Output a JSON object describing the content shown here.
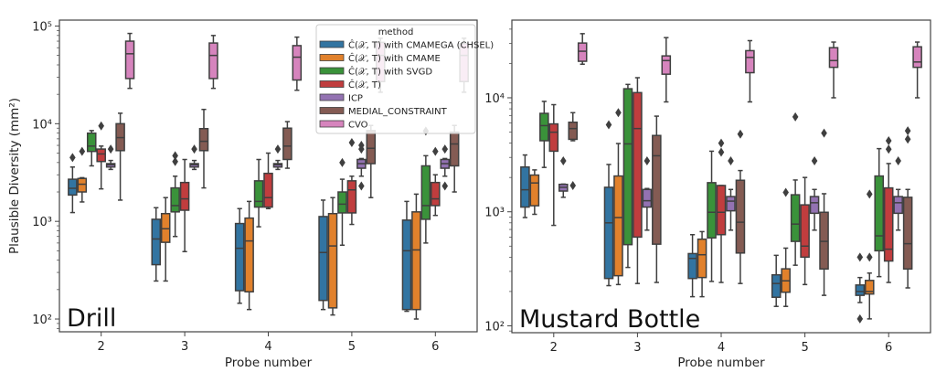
{
  "chart_data": [
    {
      "type": "box",
      "panel_label": "Drill",
      "xlabel": "Probe number",
      "ylabel": "Plausible Diversity (mm²)",
      "yscale": "log",
      "ylim": [
        74,
        115000
      ],
      "yticks": [
        {
          "value": 100,
          "label": "10²"
        },
        {
          "value": 1000,
          "label": "10³"
        },
        {
          "value": 10000,
          "label": "10⁴"
        },
        {
          "value": 100000,
          "label": "10⁵"
        }
      ],
      "categories": [
        "2",
        "3",
        "4",
        "5",
        "6"
      ],
      "legend": {
        "title": "method",
        "placement": "top-right"
      },
      "box_format": [
        "whisker_low",
        "q1",
        "median",
        "q3",
        "whisker_high",
        "outliers"
      ],
      "series": [
        {
          "name": "Ĉ(𝒳, T) with CMAMEGA (CHSEL)",
          "color": "#3274a1",
          "boxes": [
            [
              1230,
              1860,
              2180,
              2700,
              3600,
              [
                4500
              ]
            ],
            [
              245,
              360,
              660,
              1050,
              1380,
              []
            ],
            [
              145,
              195,
              530,
              950,
              1350,
              []
            ],
            [
              125,
              155,
              480,
              1120,
              1650,
              []
            ],
            [
              120,
              125,
              500,
              1030,
              1600,
              []
            ]
          ]
        },
        {
          "name": "Ĉ(𝒳, T) with CMAME",
          "color": "#e1812c",
          "boxes": [
            [
              1580,
              2000,
              2400,
              2750,
              2800,
              [
                5200
              ]
            ],
            [
              245,
              610,
              840,
              1200,
              1750,
              []
            ],
            [
              125,
              190,
              630,
              1080,
              1600,
              []
            ],
            [
              110,
              130,
              560,
              1200,
              1750,
              []
            ],
            [
              100,
              125,
              510,
              1250,
              1900,
              []
            ]
          ]
        },
        {
          "name": "Ĉ(𝒳, T) with SVGD",
          "color": "#3a923a",
          "boxes": [
            [
              3700,
              5200,
              5900,
              8000,
              8500,
              []
            ],
            [
              700,
              1250,
              1450,
              2200,
              2900,
              [
                4100,
                4700
              ]
            ],
            [
              880,
              1400,
              1600,
              2600,
              4300,
              []
            ],
            [
              570,
              1220,
              1500,
              2000,
              2700,
              [
                4000
              ]
            ],
            [
              600,
              1050,
              1450,
              3700,
              4700,
              [
                8400
              ]
            ]
          ]
        },
        {
          "name": "Ĉ(𝒳, T)",
          "color": "#c03d3e",
          "boxes": [
            [
              2150,
              4100,
              4900,
              5500,
              5900,
              [
                9500
              ]
            ],
            [
              490,
              1300,
              1700,
              2500,
              4300,
              []
            ],
            [
              1350,
              1400,
              1750,
              3100,
              5000,
              []
            ],
            [
              930,
              1220,
              2100,
              2600,
              2900,
              [
                6400
              ]
            ],
            [
              1150,
              1450,
              1700,
              2500,
              3000,
              [
                5200
              ]
            ]
          ]
        },
        {
          "name": "ICP",
          "color": "#9372b2",
          "boxes": [
            [
              3400,
              3600,
              3800,
              3900,
              4200,
              [
                5500
              ]
            ],
            [
              3400,
              3600,
              3800,
              3900,
              4200,
              [
                5500
              ]
            ],
            [
              3400,
              3600,
              3800,
              3900,
              4200,
              [
                5500
              ]
            ],
            [
              2900,
              3500,
              3900,
              4300,
              4400,
              [
                2300,
                5500,
                6000
              ]
            ],
            [
              2900,
              3500,
              3900,
              4300,
              4400,
              [
                2300,
                5500
              ]
            ]
          ]
        },
        {
          "name": "MEDIAL_CONSTRAINT",
          "color": "#845b53",
          "boxes": [
            [
              1650,
              5300,
              7200,
              10000,
              12800,
              []
            ],
            [
              2200,
              5300,
              6600,
              8900,
              14000,
              []
            ],
            [
              3500,
              4300,
              5900,
              9000,
              10500,
              []
            ],
            [
              1750,
              3900,
              5600,
              8500,
              9600,
              []
            ],
            [
              2000,
              3700,
              6200,
              8200,
              9600,
              []
            ]
          ]
        },
        {
          "name": "CVO",
          "color": "#d684bd",
          "boxes": [
            [
              23000,
              29000,
              52000,
              70000,
              84000,
              []
            ],
            [
              23000,
              29000,
              50000,
              67000,
              80000,
              []
            ],
            [
              22000,
              28000,
              48000,
              63000,
              77000,
              []
            ],
            [
              21000,
              27000,
              50000,
              68000,
              75000,
              []
            ],
            [
              21000,
              27000,
              50000,
              66000,
              75000,
              []
            ]
          ]
        }
      ]
    },
    {
      "type": "box",
      "panel_label": "Mustard Bottle",
      "xlabel": "Probe number",
      "ylabel": "",
      "yscale": "log",
      "ylim": [
        87,
        48000
      ],
      "yticks": [
        {
          "value": 100,
          "label": "10²"
        },
        {
          "value": 1000,
          "label": "10³"
        },
        {
          "value": 10000,
          "label": "10⁴"
        }
      ],
      "categories": [
        "2",
        "3",
        "4",
        "5",
        "6"
      ],
      "box_format": [
        "whisker_low",
        "q1",
        "median",
        "q3",
        "whisker_high",
        "outliers"
      ],
      "series": [
        {
          "name": "Ĉ(𝒳, T) with CMAMEGA (CHSEL)",
          "color": "#3274a1",
          "boxes": [
            [
              890,
              1100,
              1560,
              2470,
              3150,
              []
            ],
            [
              225,
              260,
              800,
              1640,
              2600,
              [
                5800
              ]
            ],
            [
              180,
              260,
              390,
              430,
              630,
              []
            ],
            [
              148,
              178,
              235,
              280,
              415,
              []
            ],
            [
              160,
              185,
              200,
              228,
              265,
              [
                115,
                400
              ]
            ]
          ]
        },
        {
          "name": "Ĉ(𝒳, T) with CMAME",
          "color": "#e1812c",
          "boxes": [
            [
              950,
              1130,
              1790,
              2100,
              2330,
              []
            ],
            [
              230,
              275,
              890,
              2060,
              3970,
              [
                7400
              ]
            ],
            [
              180,
              265,
              420,
              575,
              670,
              []
            ],
            [
              148,
              197,
              248,
              316,
              480,
              [
                1480
              ]
            ],
            [
              115,
              190,
              200,
              250,
              290,
              [
                400,
                1430
              ]
            ]
          ]
        },
        {
          "name": "Ĉ(𝒳, T) with SVGD",
          "color": "#3a923a",
          "boxes": [
            [
              2450,
              4200,
              5700,
              7300,
              9300,
              []
            ],
            [
              325,
              515,
              3940,
              12000,
              13100,
              []
            ],
            [
              245,
              590,
              990,
              1800,
              3400,
              []
            ],
            [
              340,
              550,
              780,
              1410,
              1900,
              [
                6800
              ]
            ],
            [
              270,
              455,
              615,
              2060,
              3580,
              []
            ]
          ]
        },
        {
          "name": "Ĉ(𝒳, T)",
          "color": "#c03d3e",
          "boxes": [
            [
              760,
              3400,
              4990,
              5900,
              8700,
              []
            ],
            [
              235,
              600,
              5370,
              11100,
              15000,
              []
            ],
            [
              240,
              630,
              990,
              1700,
              1700,
              [
                3330,
                4000
              ]
            ],
            [
              230,
              400,
              500,
              1150,
              2000,
              []
            ],
            [
              240,
              370,
              470,
              1620,
              2650,
              [
                3540,
                4200
              ]
            ]
          ]
        },
        {
          "name": "ICP",
          "color": "#9372b2",
          "boxes": [
            [
              1340,
              1520,
              1640,
              1740,
              1750,
              [
                2800
              ]
            ],
            [
              690,
              1100,
              1250,
              1570,
              1600,
              [
                2800
              ]
            ],
            [
              690,
              1020,
              1240,
              1360,
              1570,
              [
                2800
              ]
            ],
            [
              690,
              970,
              1200,
              1360,
              1570,
              [
                2800
              ]
            ],
            [
              690,
              970,
              1200,
              1360,
              1570,
              [
                2800
              ]
            ]
          ]
        },
        {
          "name": "MEDIAL_CONSTRAINT",
          "color": "#845b53",
          "boxes": [
            [
              4200,
              4320,
              5370,
              6100,
              7400,
              [
                1700
              ]
            ],
            [
              240,
              520,
              3100,
              4670,
              6900,
              []
            ],
            [
              235,
              435,
              810,
              1890,
              2300,
              [
                4800
              ]
            ],
            [
              185,
              315,
              550,
              990,
              1440,
              [
                4900
              ]
            ],
            [
              215,
              315,
              525,
              1340,
              1570,
              [
                4340,
                5130
              ]
            ]
          ]
        },
        {
          "name": "CVO",
          "color": "#d684bd",
          "boxes": [
            [
              19700,
              20900,
              25600,
              30200,
              36500,
              []
            ],
            [
              9200,
              16100,
              21200,
              23300,
              33700,
              []
            ],
            [
              9200,
              16600,
              22600,
              25900,
              31700,
              []
            ],
            [
              10000,
              18500,
              21200,
              27500,
              30800,
              []
            ],
            [
              10000,
              18500,
              20600,
              28000,
              30800,
              []
            ]
          ]
        }
      ]
    }
  ]
}
